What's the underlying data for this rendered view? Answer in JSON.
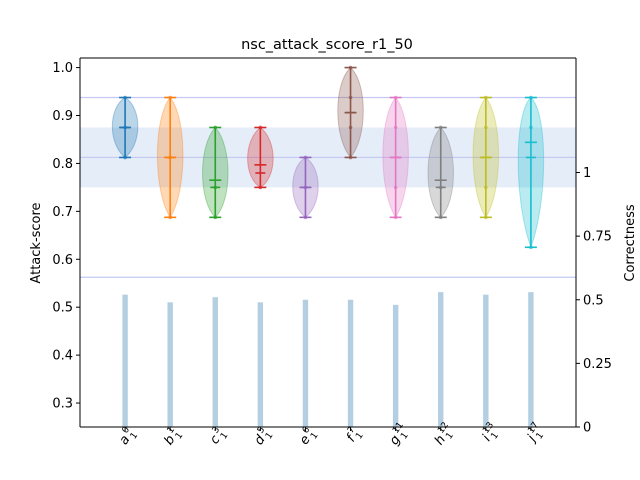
{
  "chart_data": {
    "type": "violin",
    "title": "nsc_attack_score_r1_50",
    "xlabel": "",
    "ylabel": "Attack-score",
    "y2label": "Correctness",
    "ylim": [
      0.25,
      1.02
    ],
    "yticks": [
      0.3,
      0.4,
      0.5,
      0.6,
      0.7,
      0.8,
      0.9,
      1.0
    ],
    "y2lim": [
      0,
      1.45
    ],
    "y2ticks": [
      0,
      0.25,
      0.5,
      0.75,
      1
    ],
    "y2ticklabels": [
      "0",
      "0.25",
      "0.5",
      "0.75",
      "1"
    ],
    "reference_band": {
      "low": 0.75,
      "high": 0.875
    },
    "reference_lines": [
      0.5625,
      0.8125,
      0.9375
    ],
    "categories": [
      {
        "base": "a",
        "sup": "0",
        "sub": "1"
      },
      {
        "base": "b",
        "sup": "1",
        "sub": "1"
      },
      {
        "base": "c",
        "sup": "3",
        "sub": "1"
      },
      {
        "base": "d",
        "sup": "5",
        "sub": "1"
      },
      {
        "base": "e",
        "sup": "6",
        "sub": "1"
      },
      {
        "base": "f",
        "sup": "7",
        "sub": "1"
      },
      {
        "base": "g",
        "sup": "11",
        "sub": "1"
      },
      {
        "base": "h",
        "sup": "12",
        "sub": "1"
      },
      {
        "base": "i",
        "sup": "13",
        "sub": "1"
      },
      {
        "base": "j",
        "sup": "17",
        "sub": "1"
      }
    ],
    "series": [
      {
        "color": "#1f77b4",
        "min": 0.8125,
        "max": 0.9375,
        "mean": 0.875,
        "median": 0.875,
        "points": [
          0.8125,
          0.875,
          0.9375
        ],
        "correctness": 0.52
      },
      {
        "color": "#ff7f0e",
        "min": 0.6875,
        "max": 0.9375,
        "mean": 0.8125,
        "median": 0.8125,
        "points": [
          0.6875,
          0.8125,
          0.9375
        ],
        "correctness": 0.49
      },
      {
        "color": "#2ca02c",
        "min": 0.6875,
        "max": 0.875,
        "mean": 0.765,
        "median": 0.75,
        "points": [
          0.6875,
          0.75,
          0.875
        ],
        "correctness": 0.51
      },
      {
        "color": "#d62728",
        "min": 0.75,
        "max": 0.875,
        "mean": 0.797,
        "median": 0.78,
        "points": [
          0.75,
          0.875
        ],
        "correctness": 0.49
      },
      {
        "color": "#9467bd",
        "min": 0.6875,
        "max": 0.8125,
        "mean": 0.75,
        "median": 0.75,
        "points": [
          0.6875,
          0.75,
          0.8125
        ],
        "correctness": 0.5
      },
      {
        "color": "#8c564b",
        "min": 0.8125,
        "max": 1.0,
        "mean": 0.906,
        "median": 0.906,
        "points": [
          0.8125,
          0.875,
          0.9375,
          1.0
        ],
        "correctness": 0.5
      },
      {
        "color": "#e377c2",
        "min": 0.6875,
        "max": 0.9375,
        "mean": 0.8125,
        "median": 0.8125,
        "points": [
          0.6875,
          0.75,
          0.875,
          0.9375
        ],
        "correctness": 0.48
      },
      {
        "color": "#7f7f7f",
        "min": 0.6875,
        "max": 0.875,
        "mean": 0.765,
        "median": 0.75,
        "points": [
          0.6875,
          0.75,
          0.875
        ],
        "correctness": 0.53
      },
      {
        "color": "#bcbd22",
        "min": 0.6875,
        "max": 0.9375,
        "mean": 0.8125,
        "median": 0.8125,
        "points": [
          0.6875,
          0.75,
          0.875,
          0.9375
        ],
        "correctness": 0.52
      },
      {
        "color": "#17becf",
        "min": 0.625,
        "max": 0.9375,
        "mean": 0.844,
        "median": 0.8125,
        "points": [
          0.625,
          0.875,
          0.9375
        ],
        "correctness": 0.53
      }
    ]
  }
}
